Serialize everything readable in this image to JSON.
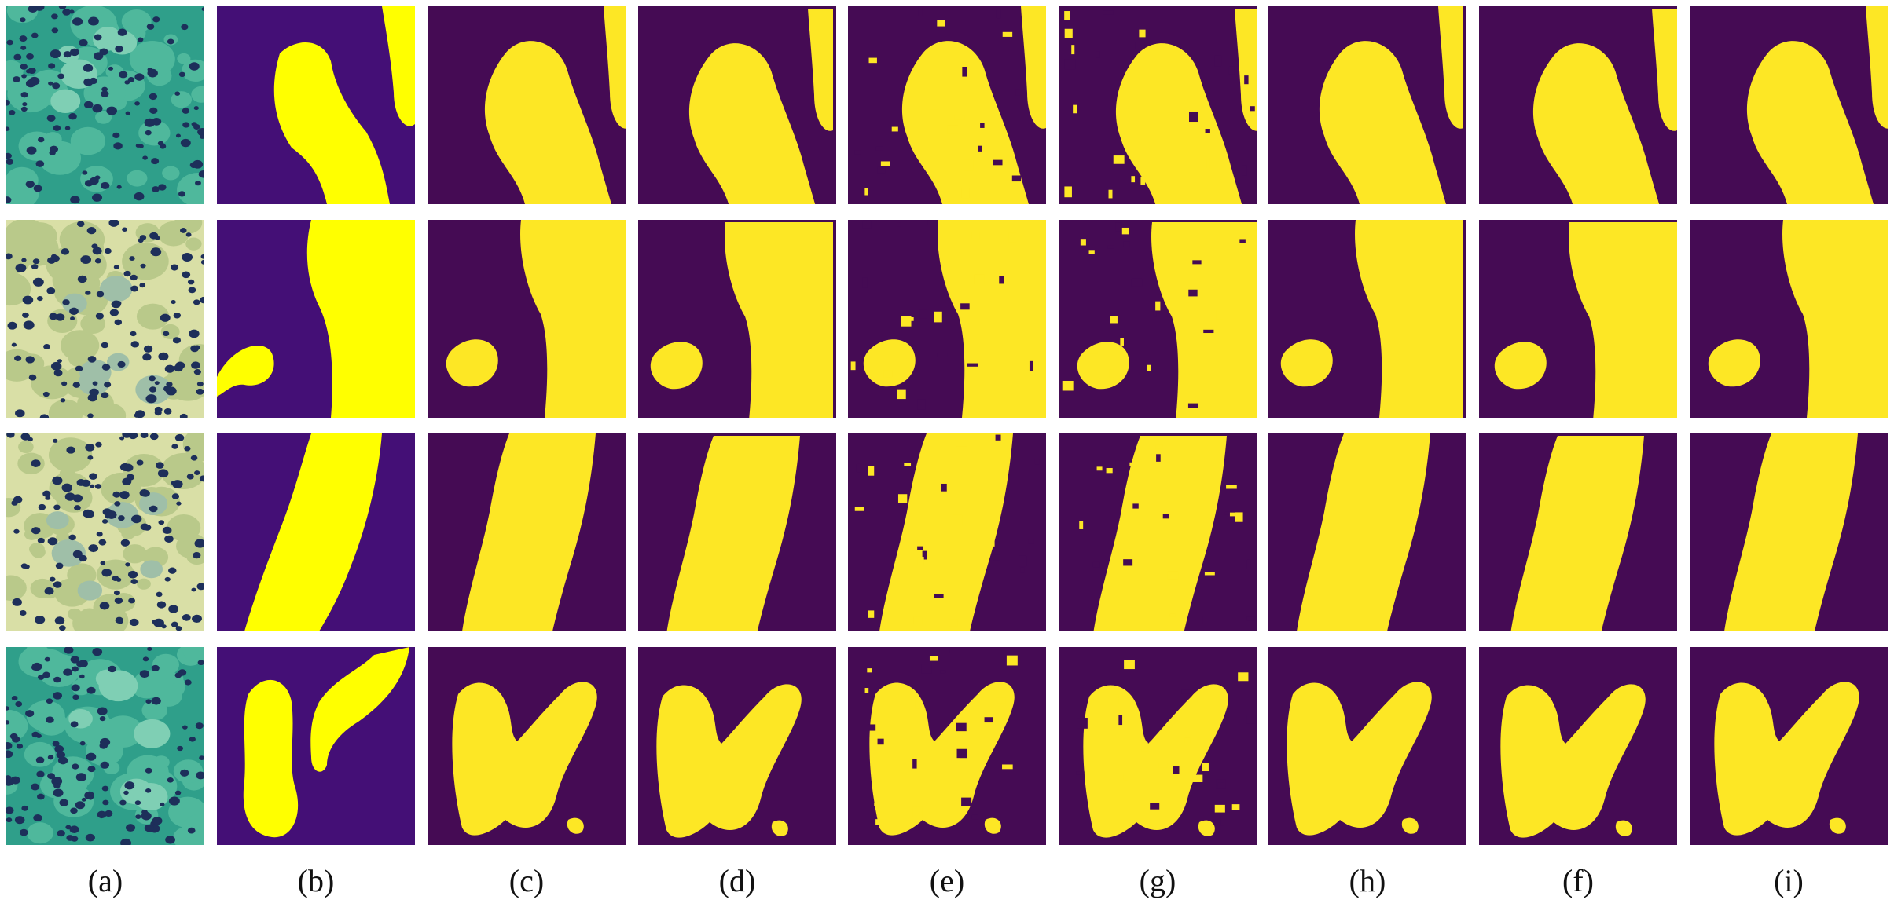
{
  "figure": {
    "column_labels": [
      "(a)",
      "(b)",
      "(c)",
      "(d)",
      "(e)",
      "(g)",
      "(h)",
      "(f)",
      "(i)"
    ],
    "row_count": 4,
    "columns": [
      {
        "label": "(a)",
        "kind": "histology-image"
      },
      {
        "label": "(b)",
        "kind": "ground-truth-mask"
      },
      {
        "label": "(c)",
        "kind": "predicted-mask"
      },
      {
        "label": "(d)",
        "kind": "predicted-mask"
      },
      {
        "label": "(e)",
        "kind": "predicted-mask"
      },
      {
        "label": "(g)",
        "kind": "predicted-mask"
      },
      {
        "label": "(h)",
        "kind": "predicted-mask"
      },
      {
        "label": "(f)",
        "kind": "predicted-mask"
      },
      {
        "label": "(i)",
        "kind": "predicted-mask"
      }
    ],
    "colors": {
      "mask_background_gt": "#440f76",
      "mask_background_pred": "#450b54",
      "mask_foreground_gt": "#ffff00",
      "mask_foreground_pred": "#fde725",
      "tissue_teal": "#2f9f8a",
      "tissue_pale": "#d9dfa6",
      "nuclei": "#1d2f5a"
    }
  }
}
